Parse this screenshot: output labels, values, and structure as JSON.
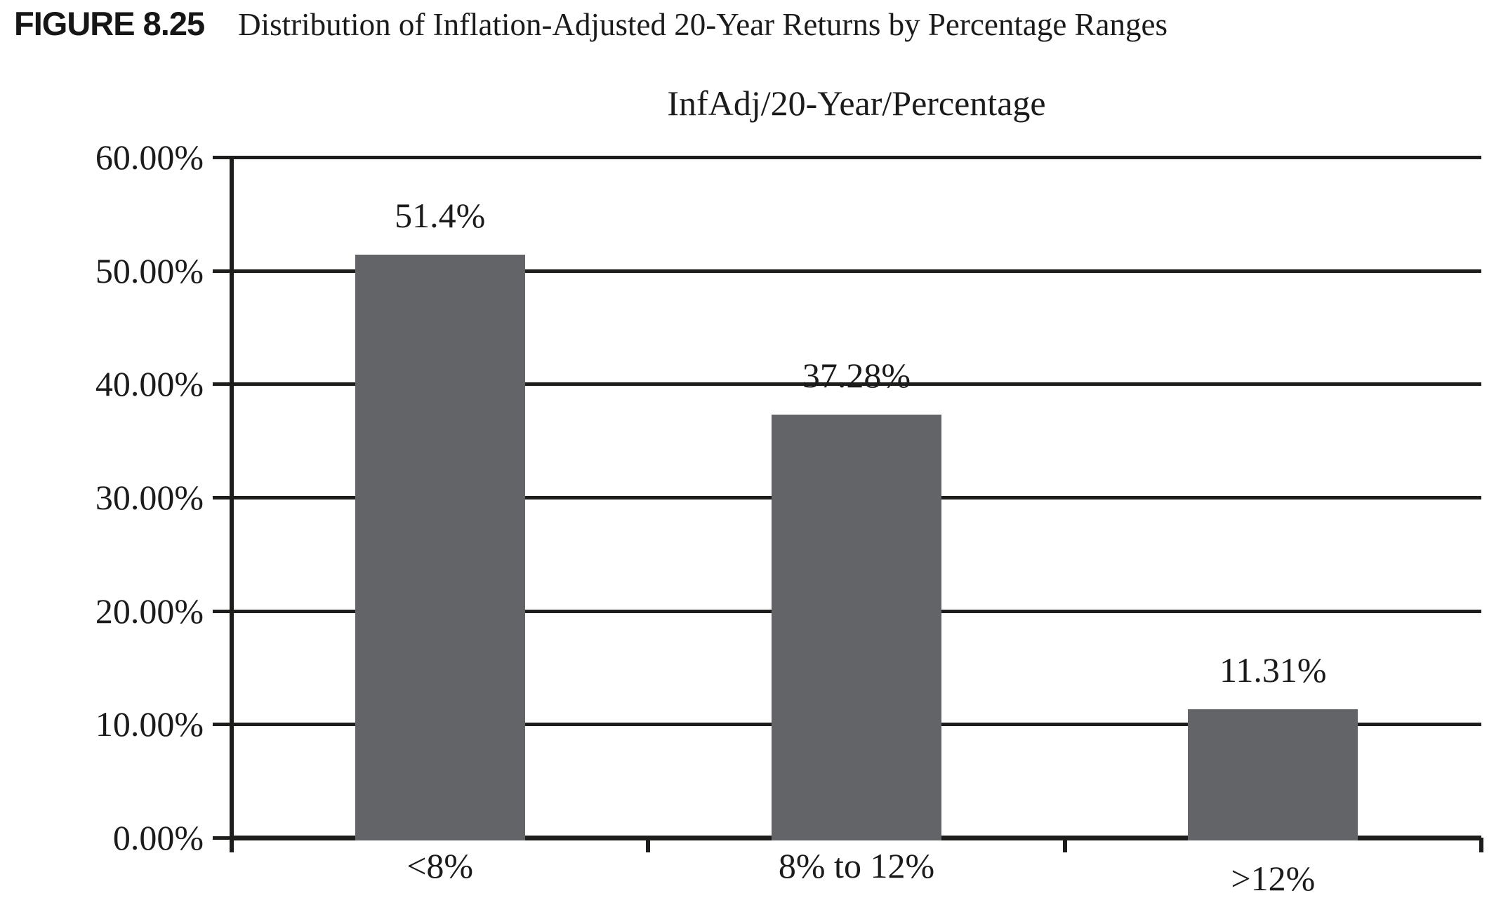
{
  "figure": {
    "label": "FIGURE 8.25",
    "caption": "Distribution of Inflation-Adjusted 20-Year Returns by Percentage Ranges"
  },
  "chart_data": {
    "type": "bar",
    "title": "InfAdj/20-Year/Percentage",
    "categories": [
      "<8%",
      "8% to 12%",
      ">12%"
    ],
    "values": [
      51.4,
      37.28,
      11.31
    ],
    "value_labels": [
      "51.4%",
      "37.28%",
      "11.31%"
    ],
    "y_tick_labels": [
      "60.00%",
      "50.00%",
      "40.00%",
      "30.00%",
      "20.00%",
      "10.00%",
      "0.00%"
    ],
    "ylim": [
      0,
      60
    ],
    "xlabel": "",
    "ylabel": "",
    "grid": "horizontal",
    "legend": "none",
    "bar_color": "#636468",
    "line_color": "#1d1d1b",
    "text_color": "#1b1b1b",
    "background": "#ffffff"
  }
}
